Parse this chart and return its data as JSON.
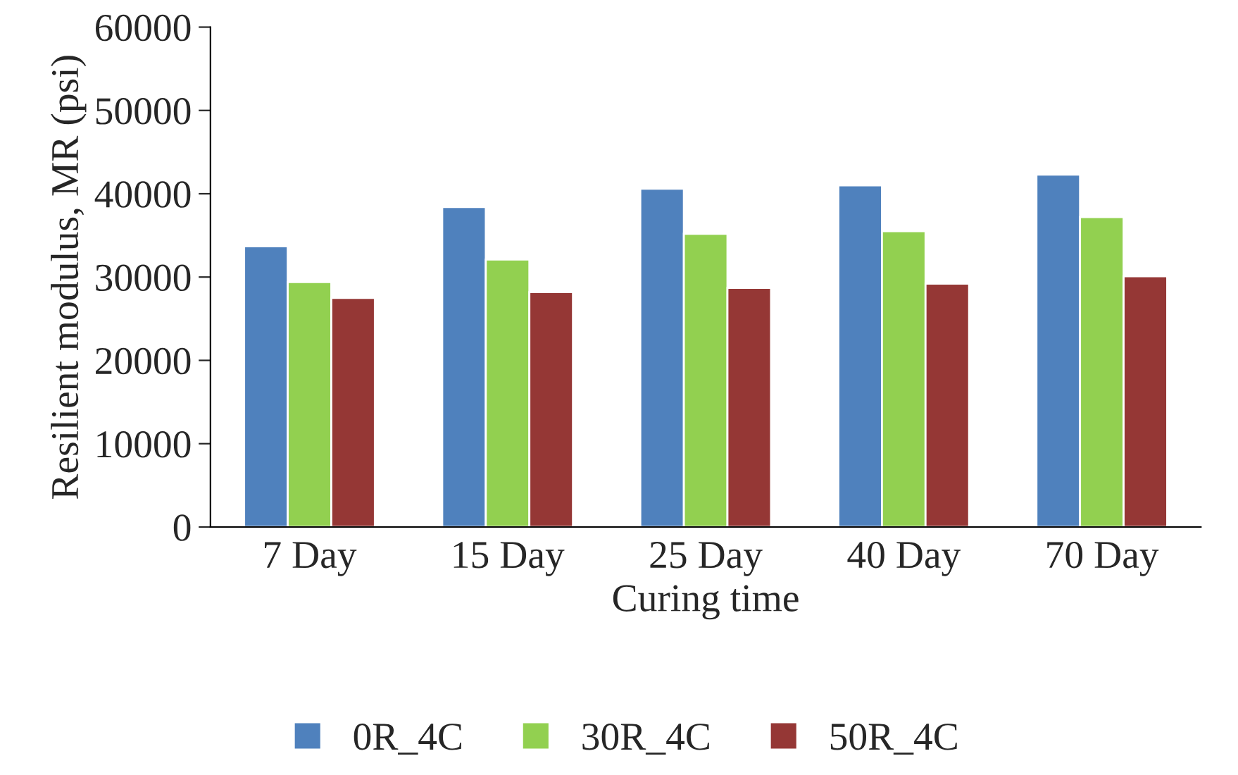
{
  "chart_data": {
    "type": "bar",
    "xlabel": "Curing time",
    "ylabel": "Resilient modulus, MR (psi)",
    "categories": [
      "7 Day",
      "15 Day",
      "25 Day",
      "40 Day",
      "70 Day"
    ],
    "series": [
      {
        "name": "0R_4C",
        "color": "#4f81bd",
        "values": [
          33700,
          38400,
          40600,
          41000,
          42300
        ]
      },
      {
        "name": "30R_4C",
        "color": "#92d050",
        "values": [
          29400,
          32100,
          35200,
          35500,
          37200
        ]
      },
      {
        "name": "50R_4C",
        "color": "#953735",
        "values": [
          27500,
          28200,
          28700,
          29200,
          30100
        ]
      }
    ],
    "ylim": [
      0,
      60000
    ],
    "yticks": [
      0,
      10000,
      20000,
      30000,
      40000,
      50000,
      60000
    ],
    "grid": false,
    "legend": "bottom"
  }
}
